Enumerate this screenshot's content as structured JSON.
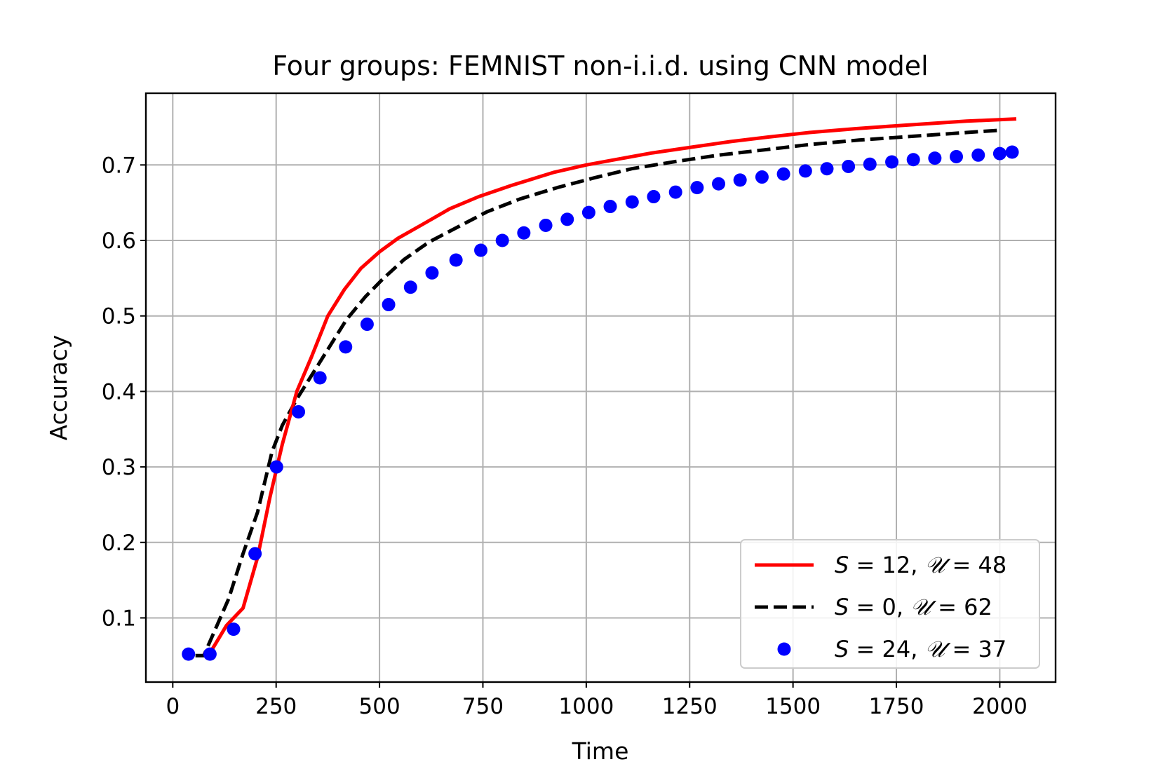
{
  "chart_data": {
    "type": "line",
    "title": "Four groups: FEMNIST non-i.i.d. using CNN model",
    "xlabel": "Time",
    "ylabel": "Accuracy",
    "xlim": [
      -65,
      2135
    ],
    "ylim": [
      0.015,
      0.795
    ],
    "xticks": [
      0,
      250,
      500,
      750,
      1000,
      1250,
      1500,
      1750,
      2000
    ],
    "yticks": [
      0.1,
      0.2,
      0.3,
      0.4,
      0.5,
      0.6,
      0.7
    ],
    "grid": true,
    "legend_position": "lower-right",
    "series": [
      {
        "name": "S = 12, 𝒰 = 48",
        "legend_parts": [
          "S",
          " = 12, ",
          "𝒰",
          " = 48"
        ],
        "style": "solid",
        "color": "#ff0000",
        "x": [
          75,
          95,
          130,
          170,
          205,
          235,
          265,
          300,
          335,
          375,
          415,
          455,
          500,
          545,
          600,
          670,
          740,
          820,
          920,
          1000,
          1060,
          1160,
          1260,
          1350,
          1440,
          1540,
          1650,
          1780,
          1920,
          2040
        ],
        "y": [
          0.052,
          0.058,
          0.09,
          0.113,
          0.18,
          0.26,
          0.33,
          0.4,
          0.445,
          0.5,
          0.535,
          0.563,
          0.585,
          0.603,
          0.62,
          0.642,
          0.658,
          0.673,
          0.69,
          0.7,
          0.706,
          0.716,
          0.724,
          0.731,
          0.737,
          0.743,
          0.748,
          0.753,
          0.758,
          0.761
        ]
      },
      {
        "name": "S = 0, 𝒰 = 62",
        "legend_parts": [
          "S",
          " = 0, ",
          "𝒰",
          " = 62"
        ],
        "style": "dashed",
        "color": "#000000",
        "x": [
          55,
          75,
          95,
          135,
          170,
          205,
          240,
          265,
          300,
          340,
          380,
          420,
          465,
          510,
          560,
          620,
          690,
          760,
          840,
          930,
          1020,
          1110,
          1210,
          1320,
          1430,
          1540,
          1660,
          1790,
          1920,
          2000
        ],
        "y": [
          0.05,
          0.05,
          0.075,
          0.125,
          0.185,
          0.24,
          0.32,
          0.355,
          0.39,
          0.425,
          0.46,
          0.495,
          0.525,
          0.55,
          0.575,
          0.598,
          0.618,
          0.638,
          0.655,
          0.67,
          0.683,
          0.695,
          0.704,
          0.713,
          0.72,
          0.727,
          0.733,
          0.738,
          0.743,
          0.746
        ]
      },
      {
        "name": "S = 24, 𝒰 = 37",
        "legend_parts": [
          "S",
          " = 24, ",
          "𝒰",
          " = 37"
        ],
        "style": "dots",
        "color": "#0000ff",
        "x": [
          38,
          90,
          147,
          199,
          251,
          304,
          356,
          418,
          470,
          522,
          575,
          627,
          685,
          745,
          797,
          849,
          902,
          954,
          1006,
          1058,
          1111,
          1163,
          1216,
          1268,
          1320,
          1372,
          1425,
          1477,
          1530,
          1582,
          1634,
          1686,
          1739,
          1791,
          1843,
          1895,
          1948,
          2000,
          2030
        ],
        "y": [
          0.052,
          0.052,
          0.085,
          0.185,
          0.3,
          0.373,
          0.418,
          0.459,
          0.489,
          0.515,
          0.538,
          0.557,
          0.574,
          0.587,
          0.6,
          0.61,
          0.62,
          0.628,
          0.637,
          0.645,
          0.651,
          0.658,
          0.664,
          0.67,
          0.675,
          0.68,
          0.684,
          0.688,
          0.692,
          0.695,
          0.698,
          0.701,
          0.704,
          0.707,
          0.709,
          0.711,
          0.713,
          0.715,
          0.717
        ]
      }
    ]
  }
}
